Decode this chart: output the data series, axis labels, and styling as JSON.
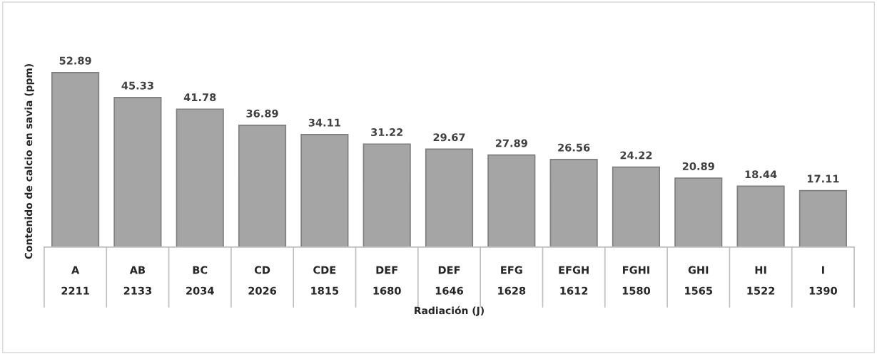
{
  "chart_data": {
    "type": "bar",
    "annotations": [
      "Radiación (J)"
    ],
    "ylabel": "Contenido de calcio en savia (ppm)",
    "categories": [
      "A\n2211",
      "AB\n2133",
      "BC\n2034",
      "CD\n2026",
      "CDE\n1815",
      "DEF\n1680",
      "DEF\n1646",
      "EFG\n1628",
      "EFGH\n1612",
      "FGHI\n1580",
      "GHI\n1565",
      "HI\n1522",
      "I\n1390"
    ],
    "values": [
      52.89,
      45.33,
      41.78,
      36.89,
      34.11,
      31.22,
      29.67,
      27.89,
      26.56,
      24.22,
      20.89,
      18.44,
      17.11
    ],
    "color": "#a5a5a5",
    "data_labels": true,
    "grid": false,
    "legend": false
  }
}
